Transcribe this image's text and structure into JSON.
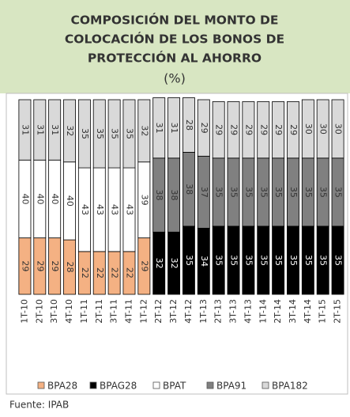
{
  "chart_data": {
    "type": "stacked_bar",
    "title": [
      "COMPOSICIÓN DEL MONTO DE",
      "COLOCACIÓN DE LOS BONOS DE",
      "PROTECCIÓN AL AHORRO",
      "(%)"
    ],
    "categories": [
      "1T-10",
      "2T-10",
      "3T-10",
      "4T-10",
      "1T-11",
      "2T-11",
      "3T-11",
      "4T-11",
      "1T-12",
      "2T-12",
      "3T-12",
      "4T-12",
      "1T-13",
      "2T-13",
      "3T-13",
      "4T-13",
      "1T-14",
      "2T-14",
      "3T-14",
      "4T-14",
      "1T-15",
      "2T-15"
    ],
    "series": [
      {
        "name": "BPA28",
        "color": "#f4b183",
        "values": [
          29,
          29,
          29,
          28,
          22,
          22,
          22,
          22,
          29,
          null,
          null,
          null,
          null,
          null,
          null,
          null,
          null,
          null,
          null,
          null,
          null,
          null
        ]
      },
      {
        "name": "BPAG28",
        "color": "#000000",
        "values": [
          null,
          null,
          null,
          null,
          null,
          null,
          null,
          null,
          null,
          32,
          32,
          35,
          34,
          35,
          35,
          35,
          35,
          35,
          35,
          35,
          35,
          35
        ]
      },
      {
        "name": "BPAT",
        "color": "#ffffff",
        "values": [
          40,
          40,
          40,
          40,
          43,
          43,
          43,
          43,
          39,
          null,
          null,
          null,
          null,
          null,
          null,
          null,
          null,
          null,
          null,
          null,
          null,
          null
        ]
      },
      {
        "name": "BPA91",
        "color": "#808080",
        "values": [
          null,
          null,
          null,
          null,
          null,
          null,
          null,
          null,
          null,
          38,
          38,
          38,
          37,
          35,
          35,
          35,
          35,
          35,
          35,
          35,
          35,
          35
        ]
      },
      {
        "name": "BPA182",
        "color": "#d9d9d9",
        "values": [
          31,
          31,
          31,
          32,
          35,
          35,
          35,
          35,
          32,
          31,
          31,
          28,
          29,
          29,
          29,
          29,
          29,
          29,
          29,
          30,
          30,
          30
        ]
      }
    ],
    "ylim": [
      0,
      100
    ],
    "source": "Fuente: IPAB"
  }
}
